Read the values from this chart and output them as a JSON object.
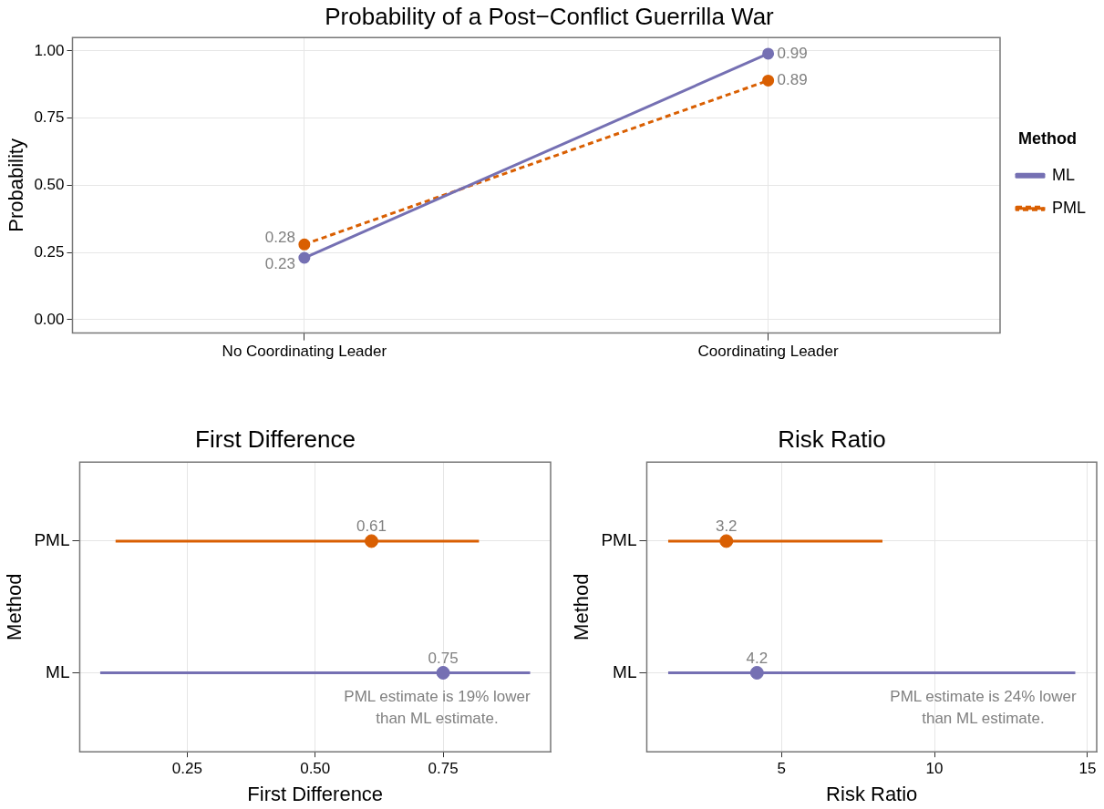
{
  "chart_data": [
    {
      "type": "line",
      "title": "Probability of a Post−Conflict Guerrilla War",
      "ylabel": "Probability",
      "categories": [
        "No Coordinating Leader",
        "Coordinating Leader"
      ],
      "series": [
        {
          "name": "ML",
          "color": "#7570b3",
          "values": [
            0.23,
            0.99
          ],
          "line_style": "solid"
        },
        {
          "name": "PML",
          "color": "#d95f02",
          "values": [
            0.28,
            0.89
          ],
          "line_style": "dashed"
        }
      ],
      "ylim": [
        -0.05,
        1.05
      ],
      "yticks": [
        {
          "value": 0,
          "label": "0.00"
        },
        {
          "value": 0.25,
          "label": "0.25"
        },
        {
          "value": 0.5,
          "label": "0.50"
        },
        {
          "value": 0.75,
          "label": "0.75"
        },
        {
          "value": 1,
          "label": "1.00"
        }
      ],
      "grid": true,
      "legend": "right",
      "legend_title": "Method",
      "marker": "circle",
      "data_labels": true
    },
    {
      "type": "scatter",
      "orientation": "horizontal",
      "title": "First Difference",
      "xlabel": "First Difference",
      "ylabel": "Method",
      "categories": [
        "PML",
        "ML"
      ],
      "values": [
        0.61,
        0.75
      ],
      "colors": [
        "#d95f02",
        "#7570b3"
      ],
      "errors": [
        [
          0.11,
          0.82
        ],
        [
          0.08,
          0.92
        ]
      ],
      "xlim": [
        0.04,
        0.96
      ],
      "xticks": [
        0.25,
        {
          "value": 0.5,
          "label": "0.50"
        },
        0.75
      ],
      "grid": true,
      "marker": "circle",
      "data_labels": true,
      "annotations": [
        "PML estimate is 19% lower\nthan ML estimate."
      ]
    },
    {
      "type": "scatter",
      "orientation": "horizontal",
      "title": "Risk Ratio",
      "xlabel": "Risk Ratio",
      "ylabel": "Method",
      "categories": [
        "PML",
        "ML"
      ],
      "values": [
        3.2,
        4.2
      ],
      "colors": [
        "#d95f02",
        "#7570b3"
      ],
      "errors": [
        [
          1.3,
          8.3
        ],
        [
          1.3,
          14.6
        ]
      ],
      "xlim": [
        0.6,
        15.3
      ],
      "xticks": [
        5,
        10,
        15
      ],
      "grid": true,
      "marker": "circle",
      "data_labels": true,
      "annotations": [
        "PML estimate is 24% lower\nthan ML estimate."
      ]
    }
  ]
}
